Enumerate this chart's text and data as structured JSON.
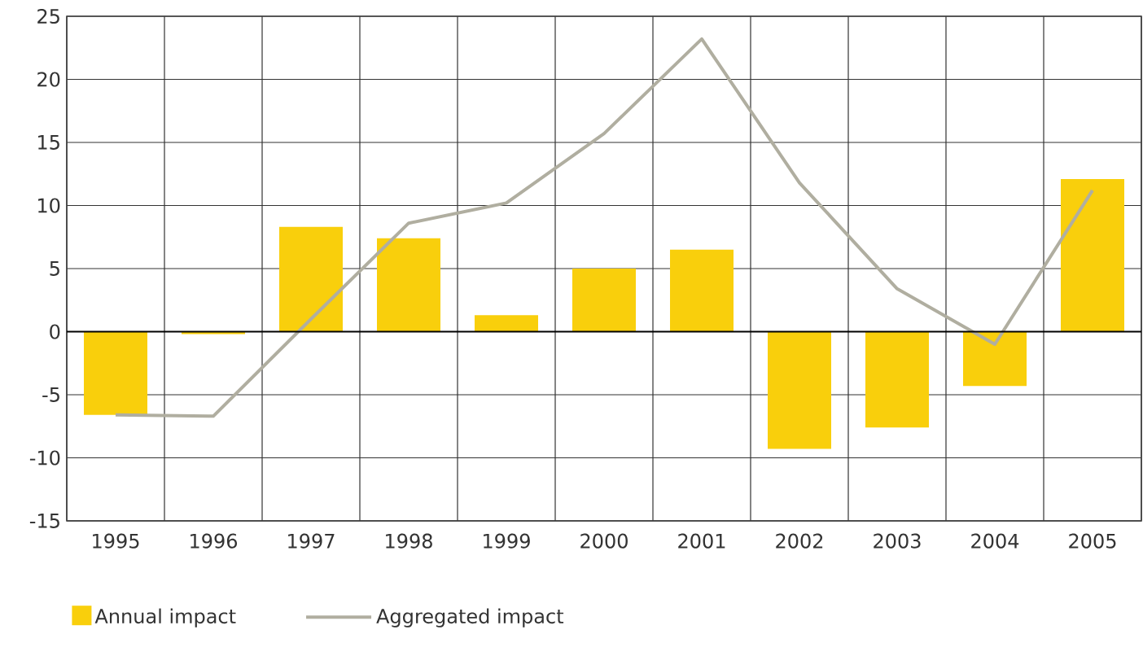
{
  "chart_data": {
    "type": "bar",
    "categories": [
      "1995",
      "1996",
      "1997",
      "1998",
      "1999",
      "2000",
      "2001",
      "2002",
      "2003",
      "2004",
      "2005"
    ],
    "series": [
      {
        "name": "Annual impact",
        "color": "#f9cf0c",
        "values": [
          -6.6,
          -0.2,
          8.3,
          7.4,
          1.3,
          5.0,
          6.5,
          -9.3,
          -7.6,
          -4.3,
          12.1
        ]
      },
      {
        "name": "Aggregated impact",
        "type": "line",
        "color": "#b0aea0",
        "values": [
          -6.6,
          -6.7,
          1.0,
          8.6,
          10.2,
          15.7,
          23.2,
          11.8,
          3.4,
          -1.0,
          11.2
        ]
      }
    ],
    "ylim": [
      -15,
      25
    ],
    "yticks": [
      -15,
      -10,
      -5,
      0,
      5,
      10,
      15,
      20,
      25
    ],
    "grid": true,
    "legend": "bottom",
    "marker": "none",
    "line_style": "solid"
  }
}
